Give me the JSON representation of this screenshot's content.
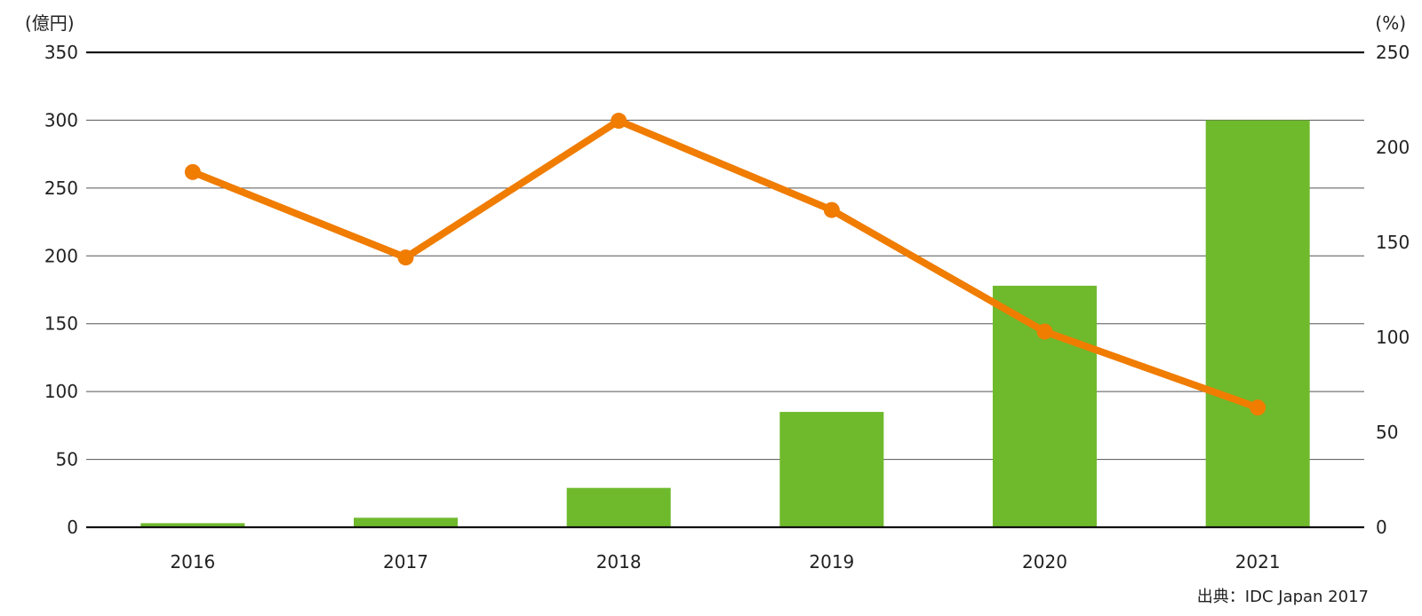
{
  "chart_data": {
    "type": "bar",
    "categories": [
      "2016",
      "2017",
      "2018",
      "2019",
      "2020",
      "2021"
    ],
    "series": [
      {
        "type": "bar",
        "axis": "left",
        "color": "#6fba2c",
        "values": [
          3,
          7,
          29,
          85,
          178,
          300
        ]
      },
      {
        "type": "line",
        "axis": "right",
        "color": "#f07c00",
        "values": [
          187,
          142,
          214,
          167,
          103,
          63
        ]
      }
    ],
    "y_left": {
      "unit": "(億円)",
      "min": 0,
      "max": 350,
      "ticks": [
        0,
        50,
        100,
        150,
        200,
        250,
        300,
        350
      ]
    },
    "y_right": {
      "unit": "(%)",
      "min": 0,
      "max": 250,
      "ticks": [
        0,
        50,
        100,
        150,
        200,
        250
      ]
    },
    "grid": true,
    "legend": "none",
    "source": "出典：IDC Japan 2017"
  }
}
